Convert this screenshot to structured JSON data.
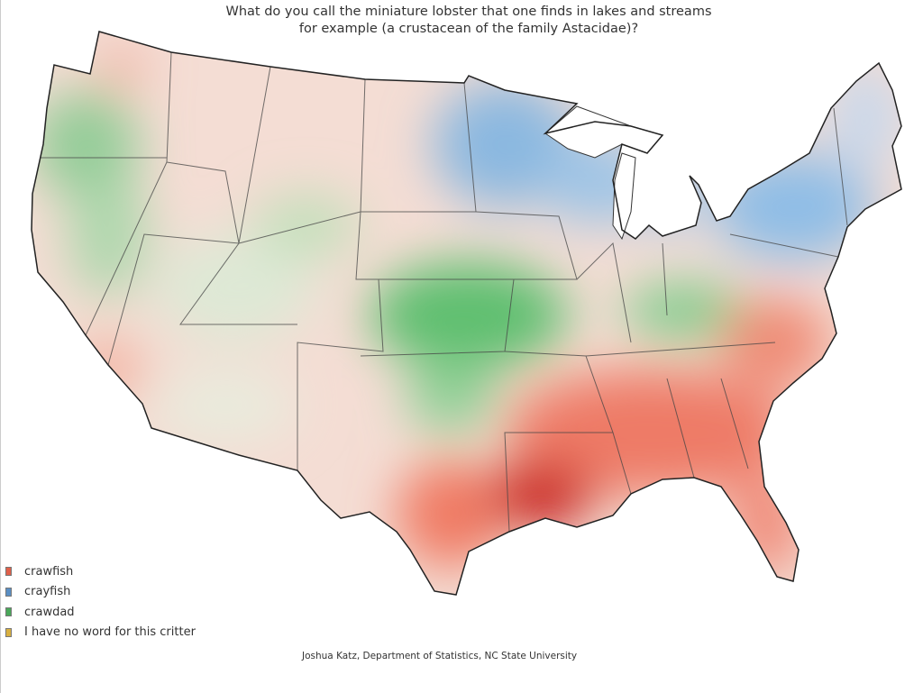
{
  "title": "What do you call the miniature lobster that one finds in lakes and streams for example (a crustacean of the family Astacidae)?",
  "legend": [
    {
      "label": "crawfish",
      "color": "#e0604a"
    },
    {
      "label": "crayfish",
      "color": "#5a8fc4"
    },
    {
      "label": "crawdad",
      "color": "#4aa85a"
    },
    {
      "label": "I have no word for this critter",
      "color": "#d8b040"
    }
  ],
  "credit": "Joshua Katz, Department of Statistics, NC State University"
}
